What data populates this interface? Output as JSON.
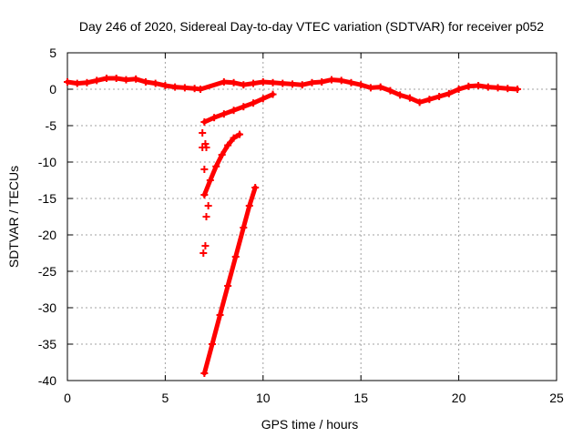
{
  "chart_data": {
    "type": "scatter",
    "title": "Day 246 of 2020, Sidereal Day-to-day VTEC variation (SDTVAR) for receiver p052",
    "xlabel": "GPS time / hours",
    "ylabel": "SDTVAR / TECUs",
    "xlim": [
      0,
      25
    ],
    "ylim": [
      -40,
      5
    ],
    "xticks": [
      0,
      5,
      10,
      15,
      20,
      25
    ],
    "yticks": [
      5,
      0,
      -5,
      -10,
      -15,
      -20,
      -25,
      -30,
      -35,
      -40
    ],
    "grid": true,
    "marker": "+",
    "color": "#ff0000",
    "series": [
      {
        "name": "main-trace",
        "x": [
          0.0,
          0.5,
          1.0,
          1.5,
          2.0,
          2.5,
          3.0,
          3.5,
          4.0,
          4.5,
          5.0,
          5.5,
          6.0,
          6.5,
          6.8,
          8.0,
          8.5,
          9.0,
          9.5,
          10.0,
          10.5,
          11.0,
          11.5,
          12.0,
          12.5,
          13.0,
          13.5,
          14.0,
          14.5,
          15.0,
          15.5,
          16.0,
          16.5,
          17.0,
          17.5,
          18.0,
          18.5,
          19.0,
          19.5,
          20.0,
          20.5,
          21.0,
          21.5,
          22.0,
          22.5,
          23.0
        ],
        "y": [
          1.0,
          0.8,
          0.9,
          1.2,
          1.5,
          1.5,
          1.3,
          1.4,
          1.0,
          0.8,
          0.5,
          0.3,
          0.2,
          0.1,
          0.0,
          1.0,
          0.9,
          0.6,
          0.8,
          1.0,
          0.9,
          0.8,
          0.7,
          0.6,
          0.9,
          1.0,
          1.3,
          1.2,
          0.9,
          0.6,
          0.2,
          0.3,
          -0.2,
          -0.8,
          -1.2,
          -1.8,
          -1.4,
          -1.0,
          -0.6,
          0.0,
          0.4,
          0.5,
          0.3,
          0.2,
          0.1,
          0.0
        ]
      },
      {
        "name": "track-a",
        "x": [
          7.0,
          7.5,
          8.0,
          8.5,
          9.0,
          9.5,
          10.0,
          10.5
        ],
        "y": [
          -4.5,
          -3.9,
          -3.4,
          -2.9,
          -2.4,
          -1.9,
          -1.3,
          -0.7
        ]
      },
      {
        "name": "track-b",
        "x": [
          7.0,
          7.3,
          7.6,
          7.9,
          8.2,
          8.5,
          8.8
        ],
        "y": [
          -14.5,
          -12.5,
          -10.6,
          -9.0,
          -7.7,
          -6.7,
          -6.2
        ]
      },
      {
        "name": "track-c",
        "x": [
          7.0,
          7.4,
          7.8,
          8.2,
          8.6,
          9.0,
          9.3,
          9.6
        ],
        "y": [
          -39.0,
          -35.0,
          -31.0,
          -27.0,
          -23.0,
          -19.0,
          -16.0,
          -13.5
        ]
      },
      {
        "name": "scattered-points",
        "x": [
          6.9,
          6.9,
          7.0,
          7.05,
          7.1,
          7.2,
          7.1,
          7.05,
          6.95
        ],
        "y": [
          -6.0,
          -8.0,
          -11.0,
          -7.5,
          -8.0,
          -16.0,
          -17.5,
          -21.5,
          -22.5
        ]
      }
    ]
  }
}
